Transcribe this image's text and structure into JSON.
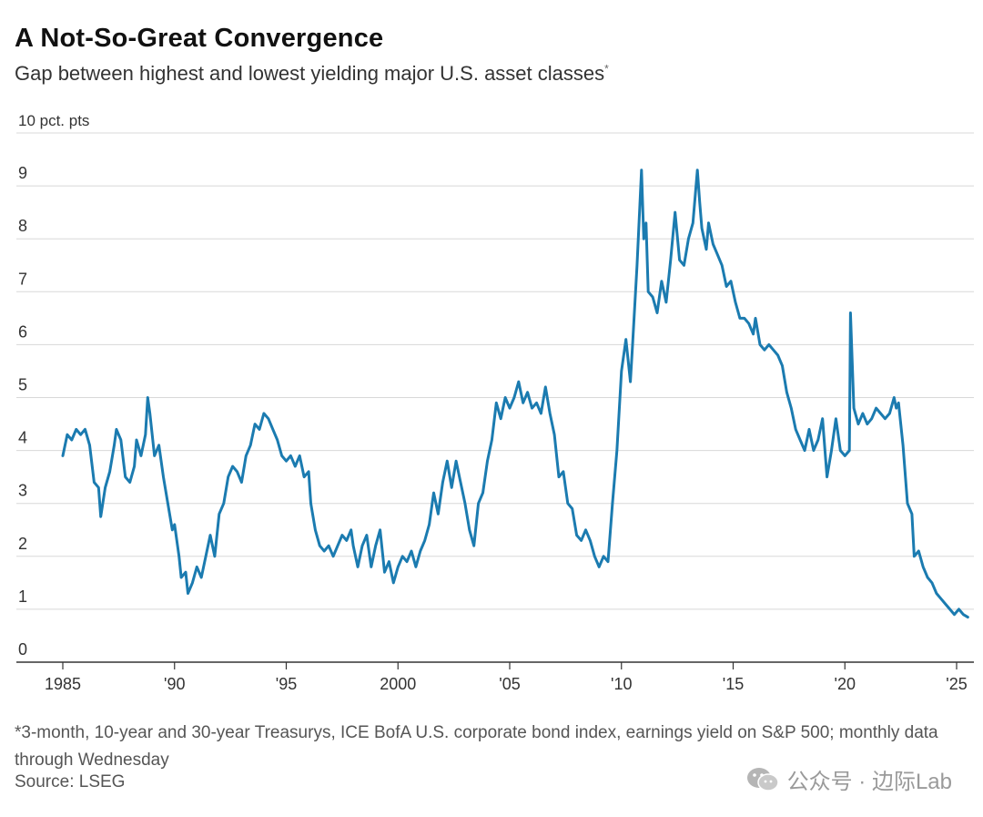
{
  "title": "A Not-So-Great Convergence",
  "subtitle": "Gap between highest and lowest yielding major U.S. asset classes",
  "subtitle_marker": "*",
  "footnote": "*3-month, 10-year and 30-year Treasurys, ICE BofA U.S. corporate bond index, earnings yield on S&P 500; monthly data through Wednesday",
  "source": "Source: LSEG",
  "watermark": {
    "icon": "wechat-icon",
    "text": "公众号 · 边际Lab"
  },
  "colors": {
    "line": "#1b7bb0",
    "grid": "#d8d8d8",
    "axis": "#333333"
  },
  "chart_data": {
    "type": "line",
    "title": "A Not-So-Great Convergence",
    "ylabel": "",
    "y_unit_label": "10 pct. pts",
    "xlim": [
      1985,
      2025.7
    ],
    "ylim": [
      0,
      10
    ],
    "grid": true,
    "x_ticks": [
      {
        "value": 1985,
        "label": "1985"
      },
      {
        "value": 1990,
        "label": "'90"
      },
      {
        "value": 1995,
        "label": "'95"
      },
      {
        "value": 2000,
        "label": "2000"
      },
      {
        "value": 2005,
        "label": "'05"
      },
      {
        "value": 2010,
        "label": "'10"
      },
      {
        "value": 2015,
        "label": "'15"
      },
      {
        "value": 2020,
        "label": "'20"
      },
      {
        "value": 2025,
        "label": "'25"
      }
    ],
    "y_ticks": [
      {
        "value": 0,
        "label": "0"
      },
      {
        "value": 1,
        "label": "1"
      },
      {
        "value": 2,
        "label": "2"
      },
      {
        "value": 3,
        "label": "3"
      },
      {
        "value": 4,
        "label": "4"
      },
      {
        "value": 5,
        "label": "5"
      },
      {
        "value": 6,
        "label": "6"
      },
      {
        "value": 7,
        "label": "7"
      },
      {
        "value": 8,
        "label": "8"
      },
      {
        "value": 9,
        "label": "9"
      },
      {
        "value": 10,
        "label": "10 pct. pts"
      }
    ],
    "series": [
      {
        "values": [
          [
            1985.0,
            3.9
          ],
          [
            1985.2,
            4.3
          ],
          [
            1985.4,
            4.2
          ],
          [
            1985.6,
            4.4
          ],
          [
            1985.8,
            4.3
          ],
          [
            1986.0,
            4.4
          ],
          [
            1986.2,
            4.1
          ],
          [
            1986.4,
            3.4
          ],
          [
            1986.6,
            3.3
          ],
          [
            1986.7,
            2.75
          ],
          [
            1986.9,
            3.3
          ],
          [
            1987.1,
            3.6
          ],
          [
            1987.3,
            4.1
          ],
          [
            1987.4,
            4.4
          ],
          [
            1987.6,
            4.2
          ],
          [
            1987.8,
            3.5
          ],
          [
            1988.0,
            3.4
          ],
          [
            1988.2,
            3.7
          ],
          [
            1988.3,
            4.2
          ],
          [
            1988.5,
            3.9
          ],
          [
            1988.7,
            4.3
          ],
          [
            1988.8,
            5.0
          ],
          [
            1988.9,
            4.7
          ],
          [
            1989.1,
            3.9
          ],
          [
            1989.3,
            4.1
          ],
          [
            1989.5,
            3.5
          ],
          [
            1989.7,
            3.0
          ],
          [
            1989.9,
            2.5
          ],
          [
            1990.0,
            2.6
          ],
          [
            1990.2,
            2.0
          ],
          [
            1990.3,
            1.6
          ],
          [
            1990.5,
            1.7
          ],
          [
            1990.6,
            1.3
          ],
          [
            1990.8,
            1.5
          ],
          [
            1991.0,
            1.8
          ],
          [
            1991.2,
            1.6
          ],
          [
            1991.4,
            2.0
          ],
          [
            1991.6,
            2.4
          ],
          [
            1991.8,
            2.0
          ],
          [
            1992.0,
            2.8
          ],
          [
            1992.2,
            3.0
          ],
          [
            1992.4,
            3.5
          ],
          [
            1992.6,
            3.7
          ],
          [
            1992.8,
            3.6
          ],
          [
            1993.0,
            3.4
          ],
          [
            1993.2,
            3.9
          ],
          [
            1993.4,
            4.1
          ],
          [
            1993.6,
            4.5
          ],
          [
            1993.8,
            4.4
          ],
          [
            1994.0,
            4.7
          ],
          [
            1994.2,
            4.6
          ],
          [
            1994.4,
            4.4
          ],
          [
            1994.6,
            4.2
          ],
          [
            1994.8,
            3.9
          ],
          [
            1995.0,
            3.8
          ],
          [
            1995.2,
            3.9
          ],
          [
            1995.4,
            3.7
          ],
          [
            1995.6,
            3.9
          ],
          [
            1995.8,
            3.5
          ],
          [
            1996.0,
            3.6
          ],
          [
            1996.1,
            3.0
          ],
          [
            1996.3,
            2.5
          ],
          [
            1996.5,
            2.2
          ],
          [
            1996.7,
            2.1
          ],
          [
            1996.9,
            2.2
          ],
          [
            1997.1,
            2.0
          ],
          [
            1997.3,
            2.2
          ],
          [
            1997.5,
            2.4
          ],
          [
            1997.7,
            2.3
          ],
          [
            1997.9,
            2.5
          ],
          [
            1998.0,
            2.2
          ],
          [
            1998.2,
            1.8
          ],
          [
            1998.4,
            2.2
          ],
          [
            1998.6,
            2.4
          ],
          [
            1998.8,
            1.8
          ],
          [
            1999.0,
            2.2
          ],
          [
            1999.2,
            2.5
          ],
          [
            1999.4,
            1.7
          ],
          [
            1999.6,
            1.9
          ],
          [
            1999.8,
            1.5
          ],
          [
            2000.0,
            1.8
          ],
          [
            2000.2,
            2.0
          ],
          [
            2000.4,
            1.9
          ],
          [
            2000.6,
            2.1
          ],
          [
            2000.8,
            1.8
          ],
          [
            2001.0,
            2.1
          ],
          [
            2001.2,
            2.3
          ],
          [
            2001.4,
            2.6
          ],
          [
            2001.6,
            3.2
          ],
          [
            2001.8,
            2.8
          ],
          [
            2002.0,
            3.4
          ],
          [
            2002.2,
            3.8
          ],
          [
            2002.4,
            3.3
          ],
          [
            2002.6,
            3.8
          ],
          [
            2002.8,
            3.4
          ],
          [
            2003.0,
            3.0
          ],
          [
            2003.2,
            2.5
          ],
          [
            2003.4,
            2.2
          ],
          [
            2003.6,
            3.0
          ],
          [
            2003.8,
            3.2
          ],
          [
            2004.0,
            3.8
          ],
          [
            2004.2,
            4.2
          ],
          [
            2004.4,
            4.9
          ],
          [
            2004.6,
            4.6
          ],
          [
            2004.8,
            5.0
          ],
          [
            2005.0,
            4.8
          ],
          [
            2005.2,
            5.0
          ],
          [
            2005.4,
            5.3
          ],
          [
            2005.6,
            4.9
          ],
          [
            2005.8,
            5.1
          ],
          [
            2006.0,
            4.8
          ],
          [
            2006.2,
            4.9
          ],
          [
            2006.4,
            4.7
          ],
          [
            2006.6,
            5.2
          ],
          [
            2006.8,
            4.7
          ],
          [
            2007.0,
            4.3
          ],
          [
            2007.2,
            3.5
          ],
          [
            2007.4,
            3.6
          ],
          [
            2007.6,
            3.0
          ],
          [
            2007.8,
            2.9
          ],
          [
            2008.0,
            2.4
          ],
          [
            2008.2,
            2.3
          ],
          [
            2008.4,
            2.5
          ],
          [
            2008.6,
            2.3
          ],
          [
            2008.8,
            2.0
          ],
          [
            2009.0,
            1.8
          ],
          [
            2009.2,
            2.0
          ],
          [
            2009.4,
            1.9
          ],
          [
            2009.6,
            3.0
          ],
          [
            2009.8,
            4.0
          ],
          [
            2010.0,
            5.5
          ],
          [
            2010.2,
            6.1
          ],
          [
            2010.4,
            5.3
          ],
          [
            2010.5,
            6.0
          ],
          [
            2010.7,
            7.5
          ],
          [
            2010.9,
            9.3
          ],
          [
            2011.0,
            8.0
          ],
          [
            2011.1,
            8.3
          ],
          [
            2011.2,
            7.0
          ],
          [
            2011.4,
            6.9
          ],
          [
            2011.6,
            6.6
          ],
          [
            2011.8,
            7.2
          ],
          [
            2012.0,
            6.8
          ],
          [
            2012.2,
            7.6
          ],
          [
            2012.4,
            8.5
          ],
          [
            2012.6,
            7.6
          ],
          [
            2012.8,
            7.5
          ],
          [
            2013.0,
            8.0
          ],
          [
            2013.2,
            8.3
          ],
          [
            2013.4,
            9.3
          ],
          [
            2013.5,
            8.7
          ],
          [
            2013.6,
            8.2
          ],
          [
            2013.8,
            7.8
          ],
          [
            2013.9,
            8.3
          ],
          [
            2014.1,
            7.9
          ],
          [
            2014.3,
            7.7
          ],
          [
            2014.5,
            7.5
          ],
          [
            2014.7,
            7.1
          ],
          [
            2014.9,
            7.2
          ],
          [
            2015.1,
            6.8
          ],
          [
            2015.3,
            6.5
          ],
          [
            2015.5,
            6.5
          ],
          [
            2015.7,
            6.4
          ],
          [
            2015.9,
            6.2
          ],
          [
            2016.0,
            6.5
          ],
          [
            2016.2,
            6.0
          ],
          [
            2016.4,
            5.9
          ],
          [
            2016.6,
            6.0
          ],
          [
            2016.8,
            5.9
          ],
          [
            2017.0,
            5.8
          ],
          [
            2017.2,
            5.6
          ],
          [
            2017.4,
            5.1
          ],
          [
            2017.6,
            4.8
          ],
          [
            2017.8,
            4.4
          ],
          [
            2018.0,
            4.2
          ],
          [
            2018.2,
            4.0
          ],
          [
            2018.4,
            4.4
          ],
          [
            2018.6,
            4.0
          ],
          [
            2018.8,
            4.2
          ],
          [
            2019.0,
            4.6
          ],
          [
            2019.2,
            3.5
          ],
          [
            2019.4,
            4.0
          ],
          [
            2019.6,
            4.6
          ],
          [
            2019.8,
            4.0
          ],
          [
            2020.0,
            3.9
          ],
          [
            2020.2,
            4.0
          ],
          [
            2020.25,
            6.6
          ],
          [
            2020.4,
            4.8
          ],
          [
            2020.6,
            4.5
          ],
          [
            2020.8,
            4.7
          ],
          [
            2021.0,
            4.5
          ],
          [
            2021.2,
            4.6
          ],
          [
            2021.4,
            4.8
          ],
          [
            2021.6,
            4.7
          ],
          [
            2021.8,
            4.6
          ],
          [
            2022.0,
            4.7
          ],
          [
            2022.2,
            5.0
          ],
          [
            2022.3,
            4.8
          ],
          [
            2022.4,
            4.9
          ],
          [
            2022.6,
            4.1
          ],
          [
            2022.8,
            3.0
          ],
          [
            2023.0,
            2.8
          ],
          [
            2023.1,
            2.0
          ],
          [
            2023.3,
            2.1
          ],
          [
            2023.5,
            1.8
          ],
          [
            2023.7,
            1.6
          ],
          [
            2023.9,
            1.5
          ],
          [
            2024.1,
            1.3
          ],
          [
            2024.3,
            1.2
          ],
          [
            2024.5,
            1.1
          ],
          [
            2024.7,
            1.0
          ],
          [
            2024.9,
            0.9
          ],
          [
            2025.1,
            1.0
          ],
          [
            2025.3,
            0.9
          ],
          [
            2025.5,
            0.85
          ]
        ]
      }
    ]
  }
}
